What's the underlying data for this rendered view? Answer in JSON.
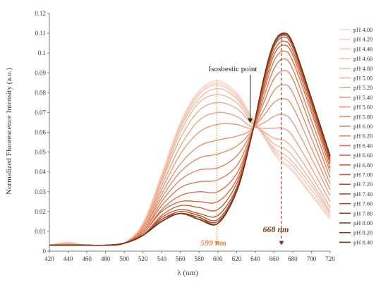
{
  "chart_data": {
    "type": "line",
    "xlabel": "λ (nm)",
    "ylabel": "Normalized Fluorescence Intensity (a.u.)",
    "xlim": [
      420,
      720
    ],
    "ylim": [
      0,
      0.12
    ],
    "xticks": [
      "420",
      "440",
      "460",
      "480",
      "500",
      "520",
      "540",
      "560",
      "580",
      "600",
      "620",
      "640",
      "660",
      "680",
      "700",
      "720"
    ],
    "yticks": [
      "0",
      "0.01",
      "0.02",
      "0.03",
      "0.04",
      "0.05",
      "0.06",
      "0.07",
      "0.08",
      "0.09",
      "0.1",
      "0.11",
      "0.12"
    ],
    "grid": false,
    "legend_position": "right",
    "series": [
      {
        "name": "pH 4.00",
        "color": "#f6d6c9",
        "x": [
          420,
          440,
          460,
          480,
          500,
          520,
          540,
          560,
          580,
          600,
          620,
          635,
          650,
          660,
          670,
          680,
          700,
          720
        ],
        "y": [
          0.003,
          0.0045,
          0.003,
          0.003,
          0.004,
          0.014,
          0.039,
          0.065,
          0.081,
          0.086,
          0.08,
          0.069,
          0.057,
          0.049,
          0.044,
          0.04,
          0.028,
          0.016
        ]
      },
      {
        "name": "pH 4.20",
        "color": "#f4cfbf",
        "x": [
          420,
          440,
          460,
          480,
          500,
          520,
          540,
          560,
          580,
          600,
          620,
          635,
          650,
          660,
          670,
          680,
          700,
          720
        ],
        "y": [
          0.003,
          0.0043,
          0.003,
          0.003,
          0.004,
          0.014,
          0.038,
          0.064,
          0.08,
          0.085,
          0.079,
          0.068,
          0.057,
          0.05,
          0.045,
          0.041,
          0.029,
          0.017
        ]
      },
      {
        "name": "pH 4.40",
        "color": "#f2c7b4",
        "x": [
          420,
          440,
          460,
          480,
          500,
          520,
          540,
          560,
          580,
          600,
          620,
          635,
          650,
          660,
          670,
          680,
          700,
          720
        ],
        "y": [
          0.003,
          0.0042,
          0.003,
          0.003,
          0.004,
          0.014,
          0.038,
          0.063,
          0.079,
          0.084,
          0.078,
          0.068,
          0.058,
          0.051,
          0.047,
          0.043,
          0.031,
          0.018
        ]
      },
      {
        "name": "pH 4.60",
        "color": "#f0bea9",
        "x": [
          420,
          440,
          460,
          480,
          500,
          520,
          540,
          560,
          580,
          600,
          620,
          635,
          650,
          660,
          670,
          680,
          700,
          720
        ],
        "y": [
          0.003,
          0.004,
          0.003,
          0.003,
          0.004,
          0.013,
          0.037,
          0.062,
          0.077,
          0.082,
          0.077,
          0.067,
          0.058,
          0.052,
          0.049,
          0.045,
          0.033,
          0.019
        ]
      },
      {
        "name": "pH 4.80",
        "color": "#eeb59d",
        "x": [
          420,
          440,
          460,
          480,
          500,
          520,
          540,
          560,
          580,
          600,
          620,
          635,
          650,
          660,
          670,
          680,
          700,
          720
        ],
        "y": [
          0.003,
          0.0038,
          0.003,
          0.003,
          0.004,
          0.013,
          0.036,
          0.06,
          0.075,
          0.079,
          0.075,
          0.066,
          0.059,
          0.054,
          0.052,
          0.048,
          0.035,
          0.02
        ]
      },
      {
        "name": "pH 5.00",
        "color": "#ecac92",
        "x": [
          420,
          440,
          460,
          480,
          500,
          520,
          540,
          560,
          580,
          600,
          620,
          635,
          650,
          660,
          670,
          680,
          700,
          720
        ],
        "y": [
          0.003,
          0.0036,
          0.003,
          0.003,
          0.004,
          0.013,
          0.035,
          0.057,
          0.071,
          0.075,
          0.072,
          0.065,
          0.06,
          0.057,
          0.056,
          0.052,
          0.038,
          0.022
        ]
      },
      {
        "name": "pH 5.20",
        "color": "#eaa386",
        "x": [
          420,
          440,
          460,
          480,
          500,
          520,
          540,
          560,
          580,
          600,
          620,
          635,
          650,
          660,
          670,
          680,
          700,
          720
        ],
        "y": [
          0.003,
          0.0034,
          0.003,
          0.003,
          0.004,
          0.012,
          0.033,
          0.053,
          0.066,
          0.07,
          0.068,
          0.063,
          0.062,
          0.062,
          0.062,
          0.058,
          0.042,
          0.025
        ]
      },
      {
        "name": "pH 5.40",
        "color": "#e89b7b",
        "x": [
          420,
          440,
          460,
          480,
          500,
          520,
          540,
          560,
          580,
          600,
          620,
          635,
          650,
          660,
          670,
          680,
          700,
          720
        ],
        "y": [
          0.003,
          0.0032,
          0.003,
          0.003,
          0.004,
          0.012,
          0.031,
          0.049,
          0.06,
          0.064,
          0.064,
          0.062,
          0.065,
          0.068,
          0.069,
          0.065,
          0.047,
          0.028
        ]
      },
      {
        "name": "pH 5.60",
        "color": "#e69270",
        "x": [
          420,
          440,
          460,
          480,
          500,
          520,
          540,
          560,
          580,
          600,
          620,
          635,
          650,
          660,
          670,
          680,
          700,
          720
        ],
        "y": [
          0.003,
          0.0031,
          0.003,
          0.003,
          0.004,
          0.011,
          0.029,
          0.044,
          0.053,
          0.056,
          0.058,
          0.061,
          0.069,
          0.075,
          0.077,
          0.073,
          0.052,
          0.031
        ]
      },
      {
        "name": "pH 5.80",
        "color": "#e38a66",
        "x": [
          420,
          440,
          460,
          480,
          500,
          520,
          540,
          560,
          580,
          600,
          620,
          635,
          650,
          660,
          670,
          680,
          700,
          720
        ],
        "y": [
          0.003,
          0.003,
          0.003,
          0.003,
          0.004,
          0.011,
          0.027,
          0.04,
          0.047,
          0.049,
          0.053,
          0.06,
          0.072,
          0.081,
          0.084,
          0.08,
          0.057,
          0.034
        ]
      },
      {
        "name": "pH 6.00",
        "color": "#e1825c",
        "x": [
          420,
          440,
          460,
          480,
          500,
          520,
          540,
          560,
          580,
          600,
          620,
          635,
          650,
          660,
          670,
          680,
          700,
          720
        ],
        "y": [
          0.003,
          0.003,
          0.003,
          0.003,
          0.004,
          0.01,
          0.025,
          0.036,
          0.041,
          0.042,
          0.048,
          0.059,
          0.076,
          0.087,
          0.091,
          0.087,
          0.062,
          0.037
        ]
      },
      {
        "name": "pH 6.20",
        "color": "#dd7a53",
        "x": [
          420,
          440,
          460,
          480,
          500,
          520,
          540,
          560,
          580,
          600,
          620,
          635,
          650,
          660,
          670,
          680,
          700,
          720
        ],
        "y": [
          0.003,
          0.003,
          0.003,
          0.003,
          0.004,
          0.01,
          0.023,
          0.032,
          0.035,
          0.036,
          0.043,
          0.058,
          0.079,
          0.092,
          0.097,
          0.092,
          0.066,
          0.04
        ]
      },
      {
        "name": "pH 6.40",
        "color": "#d8724b",
        "x": [
          420,
          440,
          460,
          480,
          500,
          520,
          540,
          560,
          580,
          600,
          620,
          635,
          650,
          660,
          670,
          680,
          700,
          720
        ],
        "y": [
          0.003,
          0.003,
          0.003,
          0.003,
          0.004,
          0.009,
          0.021,
          0.028,
          0.03,
          0.03,
          0.039,
          0.057,
          0.082,
          0.096,
          0.101,
          0.096,
          0.07,
          0.042
        ]
      },
      {
        "name": "pH 6.60",
        "color": "#d06a44",
        "x": [
          420,
          440,
          460,
          480,
          500,
          520,
          540,
          560,
          580,
          600,
          620,
          635,
          650,
          660,
          670,
          680,
          700,
          720
        ],
        "y": [
          0.003,
          0.003,
          0.003,
          0.003,
          0.004,
          0.009,
          0.02,
          0.025,
          0.025,
          0.025,
          0.036,
          0.057,
          0.084,
          0.099,
          0.104,
          0.099,
          0.072,
          0.044
        ]
      },
      {
        "name": "pH 6.80",
        "color": "#c6623e",
        "x": [
          420,
          440,
          460,
          480,
          500,
          520,
          540,
          560,
          580,
          600,
          620,
          635,
          650,
          660,
          670,
          680,
          700,
          720
        ],
        "y": [
          0.003,
          0.003,
          0.003,
          0.003,
          0.004,
          0.008,
          0.018,
          0.023,
          0.022,
          0.021,
          0.034,
          0.056,
          0.086,
          0.101,
          0.106,
          0.101,
          0.074,
          0.045
        ]
      },
      {
        "name": "pH 7.00",
        "color": "#bc5b38",
        "x": [
          420,
          440,
          460,
          480,
          500,
          520,
          540,
          560,
          580,
          600,
          620,
          635,
          650,
          660,
          670,
          680,
          700,
          720
        ],
        "y": [
          0.003,
          0.003,
          0.003,
          0.003,
          0.004,
          0.008,
          0.017,
          0.021,
          0.019,
          0.018,
          0.032,
          0.056,
          0.087,
          0.103,
          0.108,
          0.103,
          0.075,
          0.046
        ]
      },
      {
        "name": "pH 7.20",
        "color": "#b15432",
        "x": [
          420,
          440,
          460,
          480,
          500,
          520,
          540,
          560,
          580,
          600,
          620,
          635,
          650,
          660,
          670,
          680,
          700,
          720
        ],
        "y": [
          0.003,
          0.003,
          0.003,
          0.003,
          0.004,
          0.008,
          0.016,
          0.02,
          0.018,
          0.016,
          0.031,
          0.056,
          0.088,
          0.104,
          0.109,
          0.104,
          0.076,
          0.047
        ]
      },
      {
        "name": "pH 7.40",
        "color": "#a74e2d",
        "x": [
          420,
          440,
          460,
          480,
          500,
          520,
          540,
          560,
          580,
          600,
          620,
          635,
          650,
          660,
          670,
          680,
          700,
          720
        ],
        "y": [
          0.003,
          0.003,
          0.003,
          0.003,
          0.004,
          0.008,
          0.016,
          0.019,
          0.017,
          0.015,
          0.03,
          0.056,
          0.089,
          0.105,
          0.1095,
          0.105,
          0.076,
          0.047
        ]
      },
      {
        "name": "pH 7.60",
        "color": "#9c4828",
        "x": [
          420,
          440,
          460,
          480,
          500,
          520,
          540,
          560,
          580,
          600,
          620,
          635,
          650,
          660,
          670,
          680,
          700,
          720
        ],
        "y": [
          0.003,
          0.003,
          0.003,
          0.003,
          0.004,
          0.008,
          0.015,
          0.019,
          0.017,
          0.014,
          0.03,
          0.056,
          0.089,
          0.105,
          0.11,
          0.105,
          0.077,
          0.048
        ]
      },
      {
        "name": "pH 7.80",
        "color": "#914224",
        "x": [
          420,
          440,
          460,
          480,
          500,
          520,
          540,
          560,
          580,
          600,
          620,
          635,
          650,
          660,
          670,
          680,
          700,
          720
        ],
        "y": [
          0.003,
          0.003,
          0.003,
          0.003,
          0.004,
          0.008,
          0.015,
          0.019,
          0.016,
          0.014,
          0.03,
          0.056,
          0.089,
          0.105,
          0.11,
          0.105,
          0.077,
          0.048
        ]
      },
      {
        "name": "pH 8.00",
        "color": "#863d20",
        "x": [
          420,
          440,
          460,
          480,
          500,
          520,
          540,
          560,
          580,
          600,
          620,
          635,
          650,
          660,
          670,
          680,
          700,
          720
        ],
        "y": [
          0.003,
          0.003,
          0.003,
          0.003,
          0.004,
          0.008,
          0.015,
          0.019,
          0.016,
          0.014,
          0.03,
          0.056,
          0.089,
          0.105,
          0.11,
          0.105,
          0.077,
          0.048
        ]
      },
      {
        "name": "pH 8.20",
        "color": "#7c381d",
        "x": [
          420,
          440,
          460,
          480,
          500,
          520,
          540,
          560,
          580,
          600,
          620,
          635,
          650,
          660,
          670,
          680,
          700,
          720
        ],
        "y": [
          0.003,
          0.003,
          0.003,
          0.003,
          0.004,
          0.008,
          0.015,
          0.019,
          0.016,
          0.014,
          0.03,
          0.056,
          0.089,
          0.105,
          0.11,
          0.105,
          0.077,
          0.048
        ]
      },
      {
        "name": "pH 8.40",
        "color": "#72331a",
        "x": [
          420,
          440,
          460,
          480,
          500,
          520,
          540,
          560,
          580,
          600,
          620,
          635,
          650,
          660,
          670,
          680,
          700,
          720
        ],
        "y": [
          0.003,
          0.003,
          0.003,
          0.003,
          0.004,
          0.008,
          0.015,
          0.019,
          0.016,
          0.014,
          0.03,
          0.056,
          0.089,
          0.105,
          0.11,
          0.105,
          0.077,
          0.048
        ]
      }
    ],
    "annotations": [
      {
        "text": "Isosbestic point",
        "x": 636,
        "y": 0.064,
        "color": "#222222"
      },
      {
        "text": "599 nm",
        "x": 599,
        "y": 0.0,
        "color": "#e8894f"
      },
      {
        "text": "668 nm",
        "x": 668,
        "y": 0.0,
        "color": "#7c381d"
      }
    ],
    "reference_lines": [
      {
        "x": 599,
        "y_from": 0.086,
        "y_to": 0.003,
        "color": "#e8894f",
        "style": "dotted"
      },
      {
        "x": 668,
        "y_from": 0.11,
        "y_to": 0.003,
        "color": "#7c381d",
        "style": "dashed"
      }
    ]
  }
}
